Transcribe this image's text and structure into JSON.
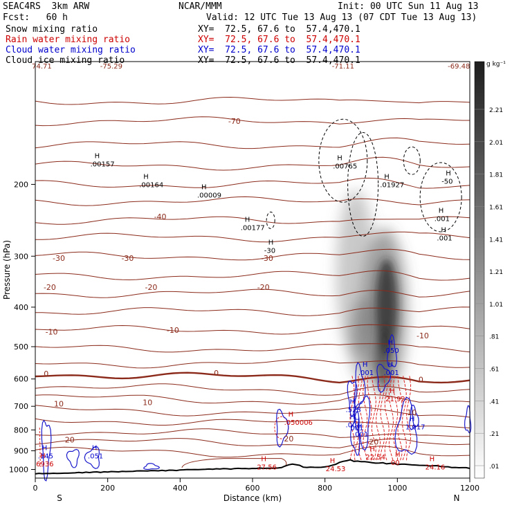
{
  "header": {
    "model": "SEAC4RS  3km ARW",
    "org": "NCAR/MMM",
    "init": "Init: 00 UTC Sun 11 Aug 13",
    "fcst": "Fcst:   60 h",
    "valid": "Valid: 12 UTC Tue 13 Aug 13 (07 CDT Tue 13 Aug 13)",
    "fields": [
      {
        "label": "Snow mixing ratio",
        "color": "#000000",
        "xy": "XY=  72.5, 67.6 to  57.4,470.1"
      },
      {
        "label": "Rain water mixing ratio",
        "color": "#cc0000",
        "xy": "XY=  72.5, 67.6 to  57.4,470.1"
      },
      {
        "label": "Cloud water mixing ratio",
        "color": "#0000cc",
        "xy": "XY=  72.5, 67.6 to  57.4,470.1"
      },
      {
        "label": "Cloud ice mixing ratio",
        "color": "#000000",
        "xy": "XY=  72.5, 67.6 to  57.4,470.1"
      }
    ]
  },
  "chart_data": {
    "type": "cross-section",
    "xlabel": "Distance (km)",
    "ylabel": "Pressure (hPa)",
    "xlim": [
      0,
      1200
    ],
    "ylim": [
      1050,
      100
    ],
    "x_ticks": [
      0,
      200,
      400,
      600,
      800,
      1000,
      1200
    ],
    "y_ticks": [
      200,
      300,
      400,
      500,
      600,
      700,
      800,
      900,
      1000
    ],
    "y_scale": "log",
    "x_end_labels": {
      "left": "S",
      "right": "N"
    },
    "colorbar": {
      "unit": "g kg⁻¹",
      "labels": [
        "2.21",
        "2.01",
        "1.81",
        "1.61",
        "1.41",
        "1.21",
        "1.01",
        ".81",
        ".61",
        ".41",
        ".21",
        ".01"
      ]
    },
    "temperature_labels": [
      {
        "text": "-70",
        "x": 550,
        "p": 140
      },
      {
        "text": "-40",
        "x": 345,
        "p": 240
      },
      {
        "text": "-30",
        "x": 65,
        "p": 303
      },
      {
        "text": "-30",
        "x": 255,
        "p": 303
      },
      {
        "text": "-30",
        "x": 640,
        "p": 303
      },
      {
        "text": "-20",
        "x": 40,
        "p": 357
      },
      {
        "text": "-20",
        "x": 320,
        "p": 357
      },
      {
        "text": "-20",
        "x": 630,
        "p": 357
      },
      {
        "text": "-10",
        "x": 45,
        "p": 460
      },
      {
        "text": "-10",
        "x": 380,
        "p": 455
      },
      {
        "text": "-10",
        "x": 1070,
        "p": 470
      },
      {
        "text": "0",
        "x": 30,
        "p": 582
      },
      {
        "text": "0",
        "x": 500,
        "p": 580
      },
      {
        "text": "0",
        "x": 1065,
        "p": 602
      },
      {
        "text": "10",
        "x": 65,
        "p": 690
      },
      {
        "text": "10",
        "x": 310,
        "p": 685
      },
      {
        "text": "10",
        "x": 1040,
        "p": 725
      },
      {
        "text": "20",
        "x": 95,
        "p": 845
      },
      {
        "text": "20",
        "x": 700,
        "p": 840
      },
      {
        "text": "20",
        "x": 935,
        "p": 855
      }
    ],
    "top_values": [
      {
        "text": "74.71",
        "x": 18
      },
      {
        "text": "-75.29",
        "x": 210
      },
      {
        "text": "-71.11",
        "x": 850
      },
      {
        "text": "-69.48",
        "x": 1170
      }
    ],
    "maxima": [
      {
        "text": ".00157",
        "x": 175,
        "p": 178,
        "color": "#000000"
      },
      {
        "text": ".00164",
        "x": 310,
        "p": 200,
        "color": "#000000"
      },
      {
        "text": ".00009",
        "x": 470,
        "p": 212,
        "color": "#000000"
      },
      {
        "text": ".00177",
        "x": 590,
        "p": 255,
        "color": "#000000"
      },
      {
        "text": ".00765",
        "x": 845,
        "p": 180,
        "color": "#000000"
      },
      {
        "text": ".01927",
        "x": 975,
        "p": 200,
        "color": "#000000"
      },
      {
        "text": ".001",
        "x": 1125,
        "p": 242,
        "color": "#000000"
      },
      {
        "text": ".001",
        "x": 1132,
        "p": 270,
        "color": "#000000"
      },
      {
        "text": ".050",
        "x": 985,
        "p": 510,
        "color": "#0000cc"
      },
      {
        "text": ".001",
        "x": 915,
        "p": 578,
        "color": "#0000cc"
      },
      {
        "text": ".001",
        "x": 985,
        "p": 578,
        "color": "#0000cc"
      },
      {
        "text": ".528",
        "x": 880,
        "p": 712,
        "color": "#0000cc"
      },
      {
        "text": ".001",
        "x": 880,
        "p": 775,
        "color": "#0000cc"
      },
      {
        "text": "001",
        "x": 893,
        "p": 790,
        "color": "#0000cc"
      },
      {
        "text": ".001",
        "x": 900,
        "p": 818,
        "color": "#0000cc"
      },
      {
        "text": "1.017",
        "x": 1045,
        "p": 785,
        "color": "#0000cc"
      },
      {
        "text": ".145",
        "x": 30,
        "p": 925,
        "color": "#0000cc"
      },
      {
        "text": ".051",
        "x": 168,
        "p": 925,
        "color": "#0000cc"
      },
      {
        "text": ".050006",
        "x": 710,
        "p": 765,
        "color": "#cc0000"
      },
      {
        "text": "21.92",
        "x": 990,
        "p": 670,
        "color": "#cc0000"
      },
      {
        "text": "22.54",
        "x": 935,
        "p": 930,
        "color": "#cc0000"
      },
      {
        "text": "6936",
        "x": 25,
        "p": 968,
        "color": "#cc0000"
      },
      {
        "text": "27.56",
        "x": 635,
        "p": 985,
        "color": "#cc0000"
      },
      {
        "text": "24.53",
        "x": 825,
        "p": 995,
        "color": "#cc0000"
      },
      {
        "text": "24.16",
        "x": 1100,
        "p": 985,
        "color": "#cc0000"
      },
      {
        "text": "00",
        "x": 1005,
        "p": 960,
        "color": "#cc0000"
      },
      {
        "text": "-50",
        "x": 1145,
        "p": 196,
        "color": "#000000"
      },
      {
        "text": "-30",
        "x": 655,
        "p": 290,
        "color": "#000000"
      }
    ]
  }
}
